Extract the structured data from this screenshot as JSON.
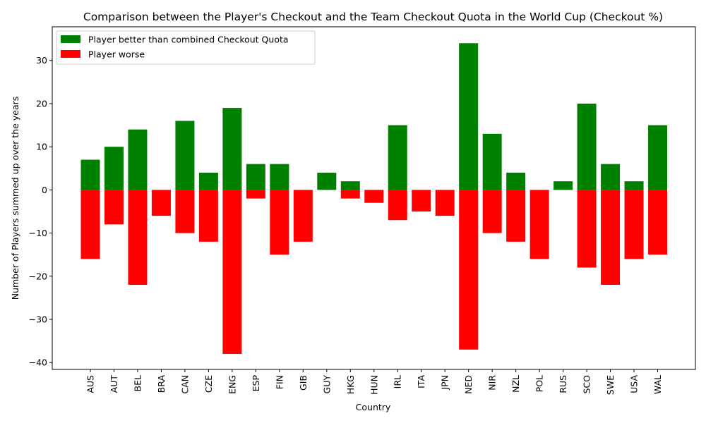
{
  "chart_data": {
    "type": "bar",
    "title": "Comparison between the Player's Checkout and the Team Checkout Quota in the World Cup (Checkout %)",
    "xlabel": "Country",
    "ylabel": "Number of Players summed up over the years",
    "ylim": [
      -41.6,
      37.8
    ],
    "yticks": [
      30,
      20,
      10,
      0,
      -10,
      -20,
      -30,
      -40
    ],
    "grid": false,
    "legend_position": "upper-left",
    "categories": [
      "AUS",
      "AUT",
      "BEL",
      "BRA",
      "CAN",
      "CZE",
      "ENG",
      "ESP",
      "FIN",
      "GIB",
      "GUY",
      "HKG",
      "HUN",
      "IRL",
      "ITA",
      "JPN",
      "NED",
      "NIR",
      "NZL",
      "POL",
      "RUS",
      "SCO",
      "SWE",
      "USA",
      "WAL"
    ],
    "series": [
      {
        "name": "Player better than combined Checkout Quota",
        "color": "#008000",
        "values": [
          7,
          10,
          14,
          0,
          16,
          4,
          19,
          6,
          6,
          0,
          4,
          2,
          0,
          15,
          0,
          0,
          34,
          13,
          4,
          0,
          2,
          20,
          6,
          2,
          15
        ]
      },
      {
        "name": "Player worse",
        "color": "#ff0000",
        "values": [
          -16,
          -8,
          -22,
          -6,
          -10,
          -12,
          -38,
          -2,
          -15,
          -12,
          0,
          -2,
          -3,
          -7,
          -5,
          -6,
          -37,
          -10,
          -12,
          -16,
          0,
          -18,
          -22,
          -16,
          -15
        ]
      }
    ]
  }
}
